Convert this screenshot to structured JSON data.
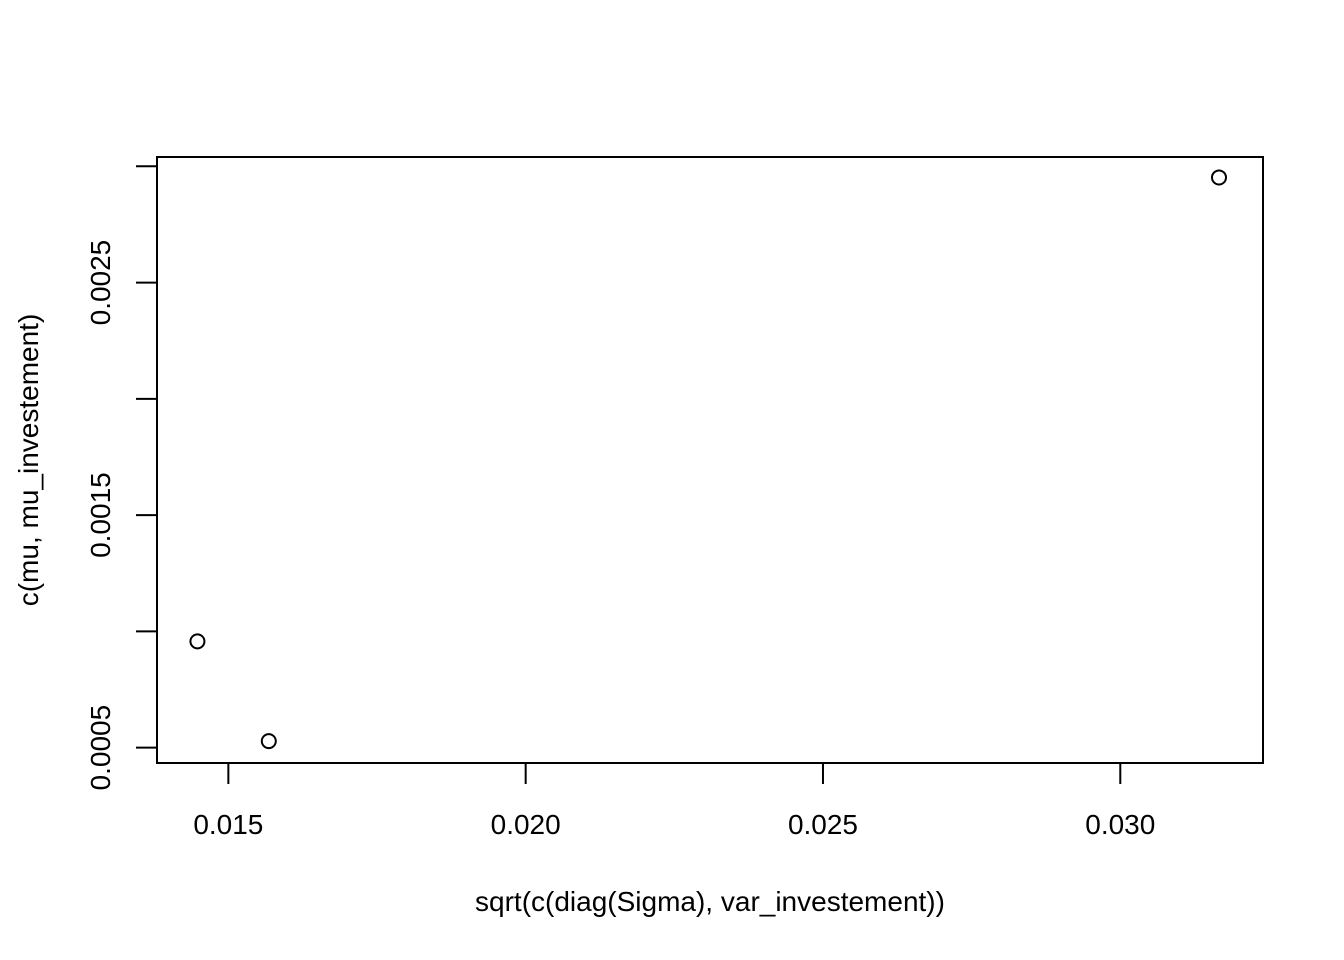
{
  "chart_data": {
    "type": "scatter",
    "title": "",
    "xlabel": "sqrt(c(diag(Sigma), var_investement))",
    "ylabel": "c(mu, mu_investement)",
    "xlim": [
      0.0138,
      0.0324
    ],
    "ylim": [
      0.000434,
      0.00304
    ],
    "x_ticks": [
      0.015,
      0.02,
      0.025,
      0.03
    ],
    "x_tick_labels": [
      "0.015",
      "0.020",
      "0.025",
      "0.030"
    ],
    "y_ticks": [
      0.0005,
      0.001,
      0.0015,
      0.002,
      0.0025,
      0.003
    ],
    "y_tick_labels": [
      "0.0005",
      "",
      "0.0015",
      "",
      "0.0025",
      ""
    ],
    "grid": false,
    "legend": "none",
    "points": [
      {
        "x": 0.01448,
        "y": 0.000957
      },
      {
        "x": 0.01568,
        "y": 0.000528
      },
      {
        "x": 0.03166,
        "y": 0.002952
      }
    ]
  }
}
